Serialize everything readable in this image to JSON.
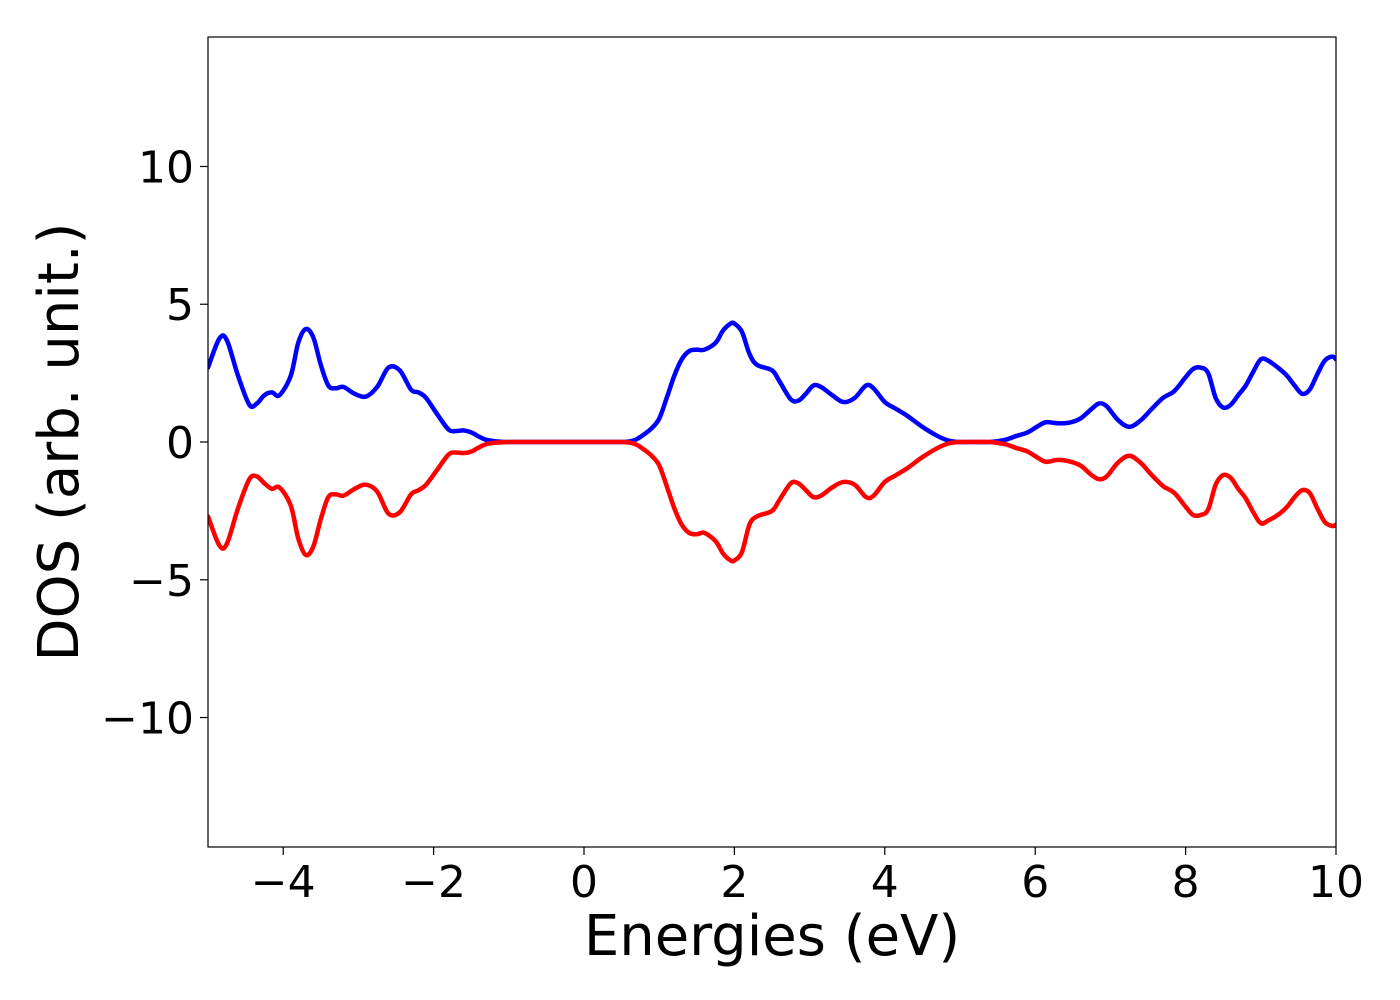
{
  "chart_data": {
    "type": "line",
    "title": "",
    "xlabel": "Energies (eV)",
    "ylabel": "DOS (arb. unit.)",
    "xlim": [
      -5,
      10
    ],
    "ylim": [
      -14.7,
      14.7
    ],
    "grid": false,
    "legend": "none",
    "x_ticks": [
      -4,
      -2,
      0,
      2,
      4,
      6,
      8,
      10
    ],
    "x_tick_labels": [
      "−4",
      "−2",
      "0",
      "2",
      "4",
      "6",
      "8",
      "10"
    ],
    "y_ticks": [
      -10,
      -5,
      0,
      5,
      10
    ],
    "y_tick_labels": [
      "−10",
      "−5",
      "0",
      "5",
      "10"
    ],
    "series": [
      {
        "color": "#0000ff",
        "x": [
          -5.0,
          -4.85,
          -4.75,
          -4.6,
          -4.45,
          -4.35,
          -4.25,
          -4.15,
          -4.05,
          -3.9,
          -3.8,
          -3.7,
          -3.6,
          -3.5,
          -3.4,
          -3.3,
          -3.2,
          -3.05,
          -2.9,
          -2.75,
          -2.6,
          -2.45,
          -2.3,
          -2.2,
          -2.1,
          -1.95,
          -1.8,
          -1.7,
          -1.6,
          -1.5,
          -1.4,
          -1.3,
          -1.15,
          -1.0,
          -0.85,
          -0.7,
          -0.5,
          -0.2,
          0.0,
          0.3,
          0.5,
          0.6,
          0.7,
          0.8,
          0.9,
          1.0,
          1.1,
          1.2,
          1.3,
          1.4,
          1.5,
          1.6,
          1.75,
          1.85,
          1.95,
          2.0,
          2.1,
          2.2,
          2.3,
          2.5,
          2.6,
          2.75,
          2.85,
          2.95,
          3.05,
          3.15,
          3.3,
          3.45,
          3.6,
          3.75,
          3.85,
          4.0,
          4.15,
          4.3,
          4.5,
          4.7,
          4.85,
          5.0,
          5.2,
          5.4,
          5.6,
          5.75,
          5.9,
          6.05,
          6.15,
          6.3,
          6.45,
          6.6,
          6.75,
          6.85,
          6.95,
          7.1,
          7.25,
          7.4,
          7.55,
          7.7,
          7.85,
          8.0,
          8.1,
          8.2,
          8.3,
          8.4,
          8.5,
          8.6,
          8.7,
          8.8,
          8.9,
          9.0,
          9.1,
          9.25,
          9.35,
          9.45,
          9.55,
          9.65,
          9.75,
          9.85,
          9.95,
          10.0
        ],
        "y": [
          2.7,
          3.75,
          3.7,
          2.4,
          1.35,
          1.4,
          1.7,
          1.8,
          1.7,
          2.4,
          3.6,
          4.1,
          3.8,
          2.8,
          2.05,
          1.95,
          2.0,
          1.75,
          1.65,
          2.0,
          2.7,
          2.6,
          1.9,
          1.8,
          1.6,
          1.0,
          0.45,
          0.4,
          0.42,
          0.35,
          0.2,
          0.08,
          0.02,
          0.0,
          0.0,
          0.0,
          0.0,
          0.0,
          0.0,
          0.0,
          0.0,
          0.02,
          0.1,
          0.28,
          0.5,
          0.85,
          1.6,
          2.4,
          3.0,
          3.3,
          3.35,
          3.35,
          3.6,
          4.05,
          4.3,
          4.3,
          4.0,
          3.2,
          2.8,
          2.6,
          2.2,
          1.55,
          1.5,
          1.75,
          2.05,
          2.0,
          1.7,
          1.45,
          1.6,
          2.05,
          1.95,
          1.45,
          1.2,
          0.95,
          0.55,
          0.22,
          0.05,
          0.0,
          0.0,
          0.0,
          0.08,
          0.22,
          0.35,
          0.6,
          0.72,
          0.68,
          0.7,
          0.85,
          1.2,
          1.4,
          1.3,
          0.8,
          0.55,
          0.78,
          1.2,
          1.6,
          1.85,
          2.35,
          2.65,
          2.7,
          2.5,
          1.6,
          1.25,
          1.35,
          1.7,
          2.05,
          2.55,
          3.0,
          2.95,
          2.65,
          2.4,
          2.05,
          1.75,
          1.9,
          2.45,
          2.95,
          3.1,
          3.0
        ]
      },
      {
        "color": "#ff0000",
        "x": [
          -5.0,
          -4.85,
          -4.75,
          -4.6,
          -4.45,
          -4.35,
          -4.25,
          -4.15,
          -4.05,
          -3.9,
          -3.8,
          -3.7,
          -3.6,
          -3.5,
          -3.4,
          -3.3,
          -3.2,
          -3.05,
          -2.9,
          -2.75,
          -2.6,
          -2.45,
          -2.3,
          -2.2,
          -2.1,
          -1.95,
          -1.8,
          -1.7,
          -1.6,
          -1.5,
          -1.4,
          -1.3,
          -1.15,
          -1.0,
          -0.85,
          -0.7,
          -0.5,
          -0.2,
          0.0,
          0.3,
          0.5,
          0.6,
          0.7,
          0.8,
          0.9,
          1.0,
          1.1,
          1.2,
          1.3,
          1.4,
          1.5,
          1.6,
          1.75,
          1.85,
          1.95,
          2.0,
          2.1,
          2.2,
          2.3,
          2.5,
          2.6,
          2.75,
          2.85,
          2.95,
          3.05,
          3.15,
          3.3,
          3.45,
          3.6,
          3.75,
          3.85,
          4.0,
          4.15,
          4.3,
          4.5,
          4.7,
          4.85,
          5.0,
          5.2,
          5.4,
          5.6,
          5.75,
          5.9,
          6.05,
          6.15,
          6.3,
          6.45,
          6.6,
          6.75,
          6.85,
          6.95,
          7.1,
          7.25,
          7.4,
          7.55,
          7.7,
          7.85,
          8.0,
          8.1,
          8.2,
          8.3,
          8.4,
          8.5,
          8.6,
          8.7,
          8.8,
          8.9,
          9.0,
          9.1,
          9.25,
          9.35,
          9.45,
          9.55,
          9.65,
          9.75,
          9.85,
          9.95,
          10.0
        ],
        "y": [
          -2.7,
          -3.75,
          -3.7,
          -2.4,
          -1.35,
          -1.25,
          -1.5,
          -1.7,
          -1.65,
          -2.3,
          -3.5,
          -4.1,
          -3.8,
          -2.8,
          -2.0,
          -1.9,
          -1.95,
          -1.7,
          -1.55,
          -1.8,
          -2.6,
          -2.55,
          -1.9,
          -1.75,
          -1.55,
          -1.0,
          -0.45,
          -0.38,
          -0.4,
          -0.35,
          -0.2,
          -0.08,
          -0.02,
          0.0,
          0.0,
          0.0,
          0.0,
          0.0,
          0.0,
          0.0,
          0.0,
          -0.02,
          -0.1,
          -0.28,
          -0.5,
          -0.85,
          -1.6,
          -2.4,
          -3.0,
          -3.3,
          -3.35,
          -3.3,
          -3.6,
          -4.05,
          -4.3,
          -4.3,
          -4.0,
          -3.0,
          -2.7,
          -2.5,
          -2.1,
          -1.5,
          -1.5,
          -1.75,
          -2.0,
          -1.95,
          -1.65,
          -1.45,
          -1.55,
          -2.0,
          -1.95,
          -1.45,
          -1.2,
          -0.95,
          -0.55,
          -0.22,
          -0.05,
          0.0,
          0.0,
          0.0,
          -0.08,
          -0.22,
          -0.35,
          -0.6,
          -0.72,
          -0.65,
          -0.7,
          -0.85,
          -1.2,
          -1.35,
          -1.25,
          -0.75,
          -0.5,
          -0.75,
          -1.2,
          -1.6,
          -1.85,
          -2.35,
          -2.65,
          -2.65,
          -2.45,
          -1.55,
          -1.2,
          -1.3,
          -1.7,
          -2.05,
          -2.55,
          -2.95,
          -2.85,
          -2.6,
          -2.35,
          -2.0,
          -1.75,
          -1.85,
          -2.4,
          -2.9,
          -3.05,
          -3.0
        ]
      }
    ]
  }
}
